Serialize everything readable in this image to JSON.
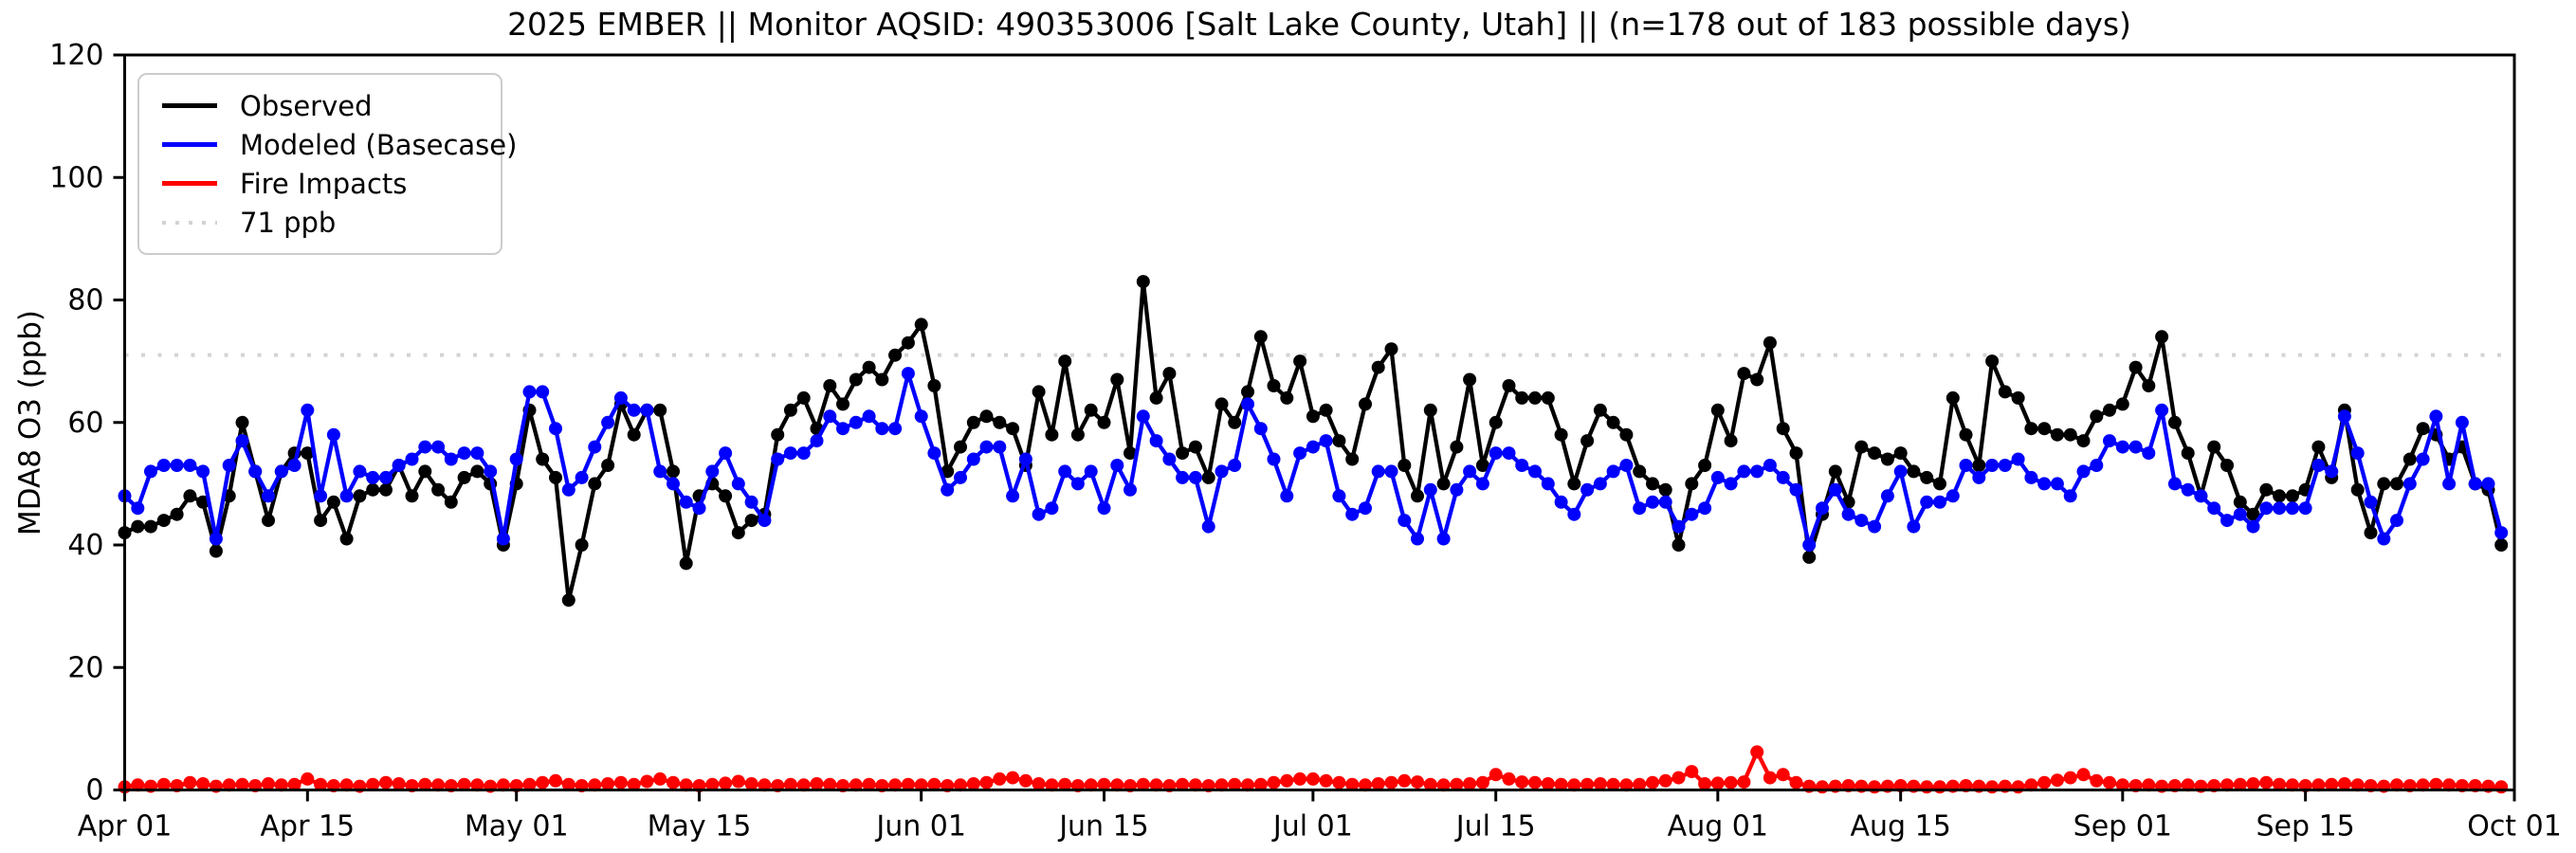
{
  "title": "2025 EMBER || Monitor AQSID: 490353006 [Salt Lake County, Utah] || (n=178 out of 183 possible days)",
  "legend": {
    "items": [
      {
        "label": "Observed",
        "swatch": "solid-black"
      },
      {
        "label": "Modeled (Basecase)",
        "swatch": "solid-blue"
      },
      {
        "label": "Fire Impacts",
        "swatch": "solid-red"
      },
      {
        "label": "71 ppb",
        "swatch": "dotted-grey"
      }
    ]
  },
  "colors": {
    "observed": "#000000",
    "modeled": "#0000ff",
    "fire": "#ff0000",
    "threshold": "#d3d3d3",
    "axis": "#000000"
  },
  "chart_data": {
    "type": "line",
    "title": "2025 EMBER || Monitor AQSID: 490353006 [Salt Lake County, Utah] || (n=178 out of 183 possible days)",
    "xlabel": "",
    "ylabel": "MDA8 O3 (ppb)",
    "ylim": [
      0,
      120
    ],
    "yticks": [
      0,
      20,
      40,
      60,
      80,
      100,
      120
    ],
    "x_unit": "day index from Apr 01 (0) to Sep 30 (182); axis spans Apr 01 - Oct 01",
    "n_days": 183,
    "grid": false,
    "legend_position": "upper-left",
    "xticks": [
      {
        "label": "Apr 01",
        "day": 0
      },
      {
        "label": "Apr 15",
        "day": 14
      },
      {
        "label": "May 01",
        "day": 30
      },
      {
        "label": "May 15",
        "day": 44
      },
      {
        "label": "Jun 01",
        "day": 61
      },
      {
        "label": "Jun 15",
        "day": 75
      },
      {
        "label": "Jul 01",
        "day": 91
      },
      {
        "label": "Jul 15",
        "day": 105
      },
      {
        "label": "Aug 01",
        "day": 122
      },
      {
        "label": "Aug 15",
        "day": 136
      },
      {
        "label": "Sep 01",
        "day": 153
      },
      {
        "label": "Sep 15",
        "day": 167
      },
      {
        "label": "Oct 01",
        "day": 183
      }
    ],
    "threshold": {
      "label": "71 ppb",
      "value": 71,
      "style": "dotted",
      "color": "#d3d3d3"
    },
    "series": [
      {
        "name": "Observed",
        "color": "#000000",
        "marker": "circle",
        "values": [
          42,
          43,
          43,
          44,
          45,
          48,
          47,
          39,
          48,
          60,
          52,
          44,
          52,
          55,
          55,
          44,
          47,
          41,
          48,
          49,
          49,
          53,
          48,
          52,
          49,
          47,
          51,
          52,
          50,
          40,
          50,
          62,
          54,
          51,
          31,
          40,
          50,
          53,
          63,
          58,
          62,
          62,
          52,
          37,
          48,
          50,
          48,
          42,
          44,
          45,
          58,
          62,
          64,
          59,
          66,
          63,
          67,
          69,
          67,
          71,
          73,
          76,
          66,
          52,
          56,
          60,
          61,
          60,
          59,
          53,
          65,
          58,
          70,
          58,
          62,
          60,
          67,
          55,
          83,
          64,
          68,
          55,
          56,
          51,
          63,
          60,
          65,
          74,
          66,
          64,
          70,
          61,
          62,
          57,
          54,
          63,
          69,
          72,
          53,
          48,
          62,
          50,
          56,
          67,
          53,
          60,
          66,
          64,
          64,
          64,
          58,
          50,
          57,
          62,
          60,
          58,
          52,
          50,
          49,
          40,
          50,
          53,
          62,
          57,
          68,
          67,
          73,
          59,
          55,
          38,
          45,
          52,
          47,
          56,
          55,
          54,
          55,
          52,
          51,
          50,
          64,
          58,
          53,
          70,
          65,
          64,
          59,
          59,
          58,
          58,
          57,
          61,
          62,
          63,
          69,
          66,
          74,
          60,
          55,
          48,
          56,
          53,
          47,
          45,
          49,
          48,
          48,
          49,
          56,
          51,
          62,
          49,
          42,
          50,
          50,
          54,
          59,
          58,
          54,
          56,
          50,
          49,
          40
        ]
      },
      {
        "name": "Modeled (Basecase)",
        "color": "#0000ff",
        "marker": "circle",
        "values": [
          48,
          46,
          52,
          53,
          53,
          53,
          52,
          41,
          53,
          57,
          52,
          48,
          52,
          53,
          62,
          48,
          58,
          48,
          52,
          51,
          51,
          53,
          54,
          56,
          56,
          54,
          55,
          55,
          52,
          41,
          54,
          65,
          65,
          59,
          49,
          51,
          56,
          60,
          64,
          62,
          62,
          52,
          50,
          47,
          46,
          52,
          55,
          50,
          47,
          44,
          54,
          55,
          55,
          57,
          61,
          59,
          60,
          61,
          59,
          59,
          68,
          61,
          55,
          49,
          51,
          54,
          56,
          56,
          48,
          54,
          45,
          46,
          52,
          50,
          52,
          46,
          53,
          49,
          61,
          57,
          54,
          51,
          51,
          43,
          52,
          53,
          63,
          59,
          54,
          48,
          55,
          56,
          57,
          48,
          45,
          46,
          52,
          52,
          44,
          41,
          49,
          41,
          49,
          52,
          50,
          55,
          55,
          53,
          52,
          50,
          47,
          45,
          49,
          50,
          52,
          53,
          46,
          47,
          47,
          43,
          45,
          46,
          51,
          50,
          52,
          52,
          53,
          51,
          49,
          40,
          46,
          49,
          45,
          44,
          43,
          48,
          52,
          43,
          47,
          47,
          48,
          53,
          51,
          53,
          53,
          54,
          51,
          50,
          50,
          48,
          52,
          53,
          57,
          56,
          56,
          55,
          62,
          50,
          49,
          48,
          46,
          44,
          45,
          43,
          46,
          46,
          46,
          46,
          53,
          52,
          61,
          55,
          47,
          41,
          44,
          50,
          54,
          61,
          50,
          60,
          50,
          50,
          42
        ]
      },
      {
        "name": "Fire Impacts",
        "color": "#ff0000",
        "marker": "circle",
        "values": [
          0.5,
          0.8,
          0.6,
          0.9,
          0.7,
          1.2,
          1.0,
          0.6,
          0.8,
          0.9,
          0.7,
          1.0,
          0.8,
          0.9,
          1.8,
          0.9,
          0.7,
          0.8,
          0.6,
          0.9,
          1.2,
          1.0,
          0.7,
          0.9,
          0.8,
          0.7,
          0.9,
          0.8,
          0.6,
          0.8,
          0.7,
          0.9,
          1.2,
          1.5,
          0.9,
          0.7,
          0.8,
          1.0,
          1.2,
          0.9,
          1.4,
          1.8,
          1.2,
          0.8,
          0.7,
          0.9,
          1.1,
          1.4,
          1.0,
          0.8,
          0.7,
          0.9,
          0.8,
          1.0,
          0.9,
          0.7,
          0.8,
          0.9,
          0.7,
          0.8,
          0.9,
          0.8,
          0.9,
          0.7,
          0.8,
          1.0,
          1.2,
          1.8,
          2.0,
          1.5,
          1.0,
          0.8,
          0.9,
          0.7,
          0.8,
          0.9,
          0.8,
          0.7,
          0.9,
          0.8,
          0.7,
          0.9,
          0.8,
          0.7,
          0.8,
          0.9,
          0.8,
          0.9,
          1.2,
          1.5,
          1.8,
          1.8,
          1.5,
          1.2,
          0.9,
          0.8,
          1.0,
          1.2,
          1.5,
          1.3,
          0.9,
          0.8,
          0.9,
          1.0,
          1.2,
          2.5,
          1.8,
          1.3,
          1.2,
          1.0,
          0.9,
          0.8,
          0.9,
          1.0,
          0.9,
          0.8,
          0.9,
          1.2,
          1.5,
          2.0,
          3.0,
          1.0,
          1.1,
          1.2,
          1.3,
          6.2,
          2.0,
          2.5,
          1.2,
          0.6,
          0.5,
          0.6,
          0.7,
          0.6,
          0.5,
          0.6,
          0.7,
          0.6,
          0.5,
          0.5,
          0.6,
          0.7,
          0.6,
          0.5,
          0.6,
          0.5,
          0.8,
          1.2,
          1.6,
          2.0,
          2.5,
          1.5,
          1.2,
          0.8,
          0.7,
          0.8,
          0.6,
          0.7,
          0.8,
          0.6,
          0.7,
          0.8,
          0.9,
          1.0,
          1.2,
          0.9,
          0.8,
          0.7,
          0.8,
          0.9,
          1.0,
          0.8,
          0.7,
          0.6,
          0.8,
          0.7,
          0.8,
          0.9,
          0.8,
          0.7,
          0.7,
          0.6,
          0.5
        ]
      }
    ]
  }
}
